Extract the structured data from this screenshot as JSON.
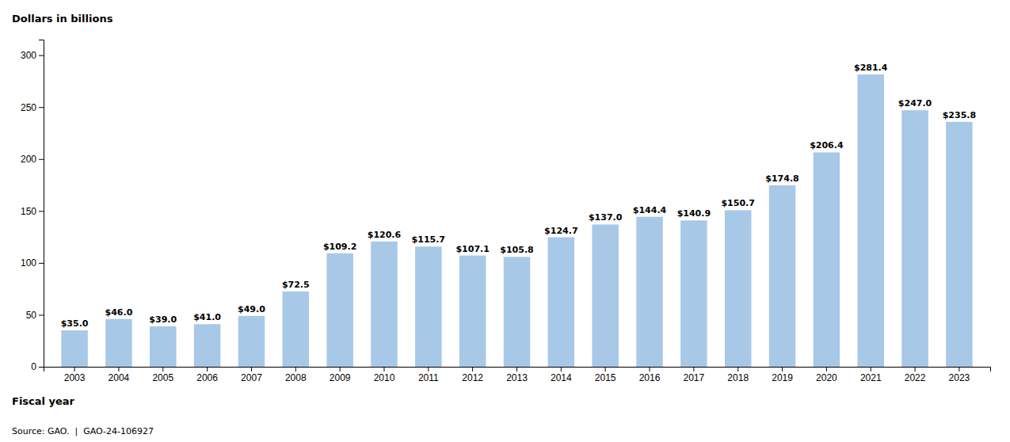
{
  "chart_data": {
    "type": "bar",
    "categories": [
      "2003",
      "2004",
      "2005",
      "2006",
      "2007",
      "2008",
      "2009",
      "2010",
      "2011",
      "2012",
      "2013",
      "2014",
      "2015",
      "2016",
      "2017",
      "2018",
      "2019",
      "2020",
      "2021",
      "2022",
      "2023"
    ],
    "values": [
      35.0,
      46.0,
      39.0,
      41.0,
      49.0,
      72.5,
      109.2,
      120.6,
      115.7,
      107.1,
      105.8,
      124.7,
      137.0,
      144.4,
      140.9,
      150.7,
      174.8,
      206.4,
      281.4,
      247.0,
      235.8
    ],
    "value_labels": [
      "$35.0",
      "$46.0",
      "$39.0",
      "$41.0",
      "$49.0",
      "$72.5",
      "$109.2",
      "$120.6",
      "$115.7",
      "$107.1",
      "$105.8",
      "$124.7",
      "$137.0",
      "$144.4",
      "$140.9",
      "$150.7",
      "$174.8",
      "$206.4",
      "$281.4",
      "$247.0",
      "$235.8"
    ],
    "data_labels": true,
    "color": "#a8c8e8",
    "y_label": "Dollars in billions",
    "x_label": "Fiscal year",
    "annotations": [
      "Source: GAO.  |  GAO-24-106927"
    ],
    "ylim": [
      0,
      315
    ],
    "yticks": [
      0,
      50,
      100,
      150,
      200,
      250,
      300
    ],
    "grid": false
  }
}
